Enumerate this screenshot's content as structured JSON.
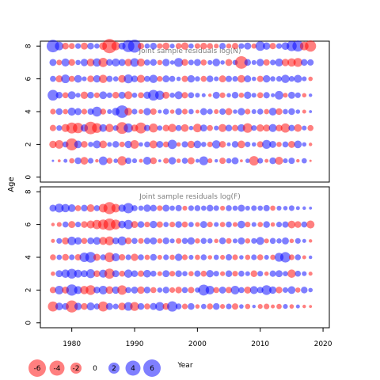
{
  "chart_data": [
    {
      "type": "scatter",
      "title": "Joint sample residuals log(N)",
      "xlabel": "",
      "ylabel": "Age",
      "xlim": [
        1975,
        2021
      ],
      "ylim": [
        -0.3,
        8.3
      ],
      "y_ticks": [
        0,
        2,
        4,
        6,
        8
      ],
      "x_ticks": [
        1980,
        1990,
        2000,
        2010,
        2020
      ],
      "show_x_tick_labels": false,
      "ages": [
        1,
        2,
        3,
        4,
        5,
        6,
        7,
        8
      ],
      "years": [
        1977,
        1978,
        1979,
        1980,
        1981,
        1982,
        1983,
        1984,
        1985,
        1986,
        1987,
        1988,
        1989,
        1990,
        1991,
        1992,
        1993,
        1994,
        1995,
        1996,
        1997,
        1998,
        1999,
        2000,
        2001,
        2002,
        2003,
        2004,
        2005,
        2006,
        2007,
        2008,
        2009,
        2010,
        2011,
        2012,
        2013,
        2014,
        2015,
        2016,
        2017,
        2018
      ],
      "residuals": [
        [
          0.2,
          -0.3,
          0.5,
          -0.8,
          1.2,
          -1.5,
          0.9,
          -0.4,
          1.8,
          -1.0,
          0.6,
          -2.0,
          1.1,
          0.7,
          -0.5,
          1.6,
          -1.2,
          0.3,
          -0.9,
          1.4,
          -0.6,
          1.0,
          -1.3,
          0.5,
          1.9,
          -0.7,
          0.4,
          -1.1,
          0.8,
          1.3,
          -0.3,
          0.6,
          -2.1,
          0.9,
          -0.5,
          1.2,
          -1.6,
          0.7,
          1.1,
          -0.4,
          0.8,
          -0.2
        ],
        [
          -1.4,
          -1.8,
          1.0,
          -3.0,
          1.5,
          -1.2,
          0.8,
          1.6,
          -1.5,
          0.7,
          1.2,
          -0.9,
          1.4,
          -1.8,
          0.6,
          1.0,
          -1.6,
          1.3,
          -1.0,
          2.0,
          -0.6,
          1.1,
          -1.4,
          1.5,
          0.8,
          -0.9,
          1.7,
          -1.2,
          0.5,
          1.2,
          -1.5,
          0.9,
          0.6,
          -1.1,
          1.9,
          1.3,
          -0.8,
          1.0,
          -1.3,
          1.5,
          0.6,
          -0.4
        ],
        [
          -1.1,
          0.9,
          -1.6,
          -2.6,
          -2.4,
          1.4,
          -3.2,
          -2.2,
          1.5,
          -1.7,
          0.9,
          -2.9,
          2.0,
          -1.3,
          -2.6,
          1.1,
          -1.9,
          0.8,
          -1.2,
          -1.7,
          1.0,
          -1.5,
          0.6,
          -1.8,
          1.3,
          -1.0,
          0.7,
          -1.6,
          1.2,
          -1.1,
          1.5,
          -2.1,
          0.9,
          -1.4,
          -1.3,
          1.6,
          -1.2,
          -2.0,
          1.1,
          -1.5,
          0.7,
          -1.0
        ],
        [
          -0.9,
          1.2,
          -0.8,
          1.6,
          1.3,
          -0.9,
          1.1,
          2.2,
          -1.0,
          0.7,
          1.5,
          3.2,
          -1.5,
          0.9,
          -0.7,
          1.4,
          -1.1,
          0.5,
          1.0,
          -0.6,
          1.2,
          -0.9,
          0.8,
          -0.5,
          1.3,
          0.9,
          -0.7,
          1.1,
          -1.3,
          0.6,
          1.4,
          -0.9,
          0.7,
          1.0,
          -0.8,
          1.5,
          -1.2,
          0.8,
          1.2,
          0.6,
          -0.5,
          0.3
        ],
        [
          2.5,
          1.2,
          -1.0,
          1.6,
          0.7,
          -1.4,
          1.2,
          -0.9,
          1.5,
          0.9,
          -1.2,
          1.3,
          -1.6,
          0.8,
          -1.0,
          1.4,
          2.5,
          2.0,
          -1.3,
          0.8,
          1.6,
          -1.1,
          1.0,
          0.7,
          0.5,
          -0.4,
          1.3,
          -0.9,
          0.6,
          1.2,
          -0.8,
          1.4,
          0.7,
          -1.0,
          1.1,
          0.5,
          1.8,
          -0.7,
          1.3,
          0.9,
          -0.6,
          0.4
        ],
        [
          1.0,
          -1.3,
          1.8,
          -1.0,
          1.5,
          0.7,
          -1.2,
          1.4,
          -1.7,
          1.1,
          0.8,
          -1.5,
          1.9,
          1.2,
          -1.6,
          1.0,
          1.7,
          -0.9,
          1.3,
          1.0,
          0.6,
          -1.1,
          1.4,
          0.8,
          -1.0,
          1.2,
          0.7,
          -1.3,
          1.1,
          0.9,
          -1.5,
          1.3,
          0.6,
          -1.1,
          1.4,
          0.8,
          0.9,
          1.7,
          0.9,
          1.6,
          0.7,
          -0.6
        ],
        [
          1.3,
          -0.9,
          1.6,
          -1.2,
          0.8,
          1.4,
          -1.5,
          1.7,
          -2.0,
          1.2,
          1.6,
          1.3,
          -1.4,
          1.8,
          -1.6,
          1.0,
          1.2,
          -0.8,
          1.4,
          0.6,
          1.9,
          -1.2,
          0.9,
          1.3,
          -1.0,
          0.7,
          1.5,
          0.6,
          -1.3,
          0.8,
          -3.2,
          1.2,
          0.7,
          1.4,
          -1.1,
          0.9,
          1.6,
          -1.4,
          -1.7,
          -1.9,
          1.2,
          1.1
        ],
        [
          3.2,
          1.8,
          -1.2,
          -1.0,
          0.9,
          -1.3,
          1.2,
          0.8,
          -1.5,
          -3.9,
          -1.8,
          1.3,
          3.0,
          3.4,
          -1.1,
          0.8,
          1.2,
          -0.9,
          -1.3,
          0.7,
          -1.0,
          -1.4,
          0.8,
          -0.9,
          -1.2,
          -1.0,
          -0.7,
          1.1,
          -0.8,
          -1.1,
          0.9,
          1.3,
          -0.8,
          2.1,
          1.4,
          -1.1,
          0.9,
          1.5,
          2.3,
          2.6,
          -1.8,
          -2.7
        ]
      ]
    },
    {
      "type": "scatter",
      "title": "Joint sample residuals log(F)",
      "xlabel": "Year",
      "ylabel": "",
      "xlim": [
        1975,
        2021
      ],
      "ylim": [
        -0.3,
        8.3
      ],
      "y_ticks": [
        0,
        2,
        4,
        6,
        8
      ],
      "x_ticks": [
        1980,
        1990,
        2000,
        2010,
        2020
      ],
      "show_x_tick_labels": true,
      "ages": [
        1,
        2,
        3,
        4,
        5,
        6,
        7
      ],
      "years": [
        1977,
        1978,
        1979,
        1980,
        1981,
        1982,
        1983,
        1984,
        1985,
        1986,
        1987,
        1988,
        1989,
        1990,
        1991,
        1992,
        1993,
        1994,
        1995,
        1996,
        1997,
        1998,
        1999,
        2000,
        2001,
        2002,
        2003,
        2004,
        2005,
        2006,
        2007,
        2008,
        2009,
        2010,
        2011,
        2012,
        2013,
        2014,
        2015,
        2016,
        2017,
        2018
      ],
      "residuals": [
        [
          -2.3,
          1.5,
          1.2,
          -3.0,
          1.4,
          -1.2,
          1.6,
          1.0,
          -2.3,
          1.3,
          0.9,
          -1.5,
          1.8,
          -1.9,
          1.2,
          -1.0,
          1.3,
          1.9,
          -1.2,
          2.4,
          1.0,
          -0.9,
          1.2,
          -0.6,
          0.8,
          -1.0,
          1.2,
          -0.7,
          0.9,
          -1.1,
          0.6,
          -0.8,
          0.4,
          -0.7,
          -0.9,
          -0.5,
          -0.8,
          0.7,
          -0.6,
          0.5,
          -0.4,
          -0.3
        ],
        [
          -1.1,
          1.8,
          -1.3,
          2.7,
          1.6,
          -1.7,
          -2.2,
          1.2,
          1.8,
          -1.5,
          1.4,
          -2.1,
          1.0,
          1.3,
          -1.4,
          1.2,
          -1.0,
          0.8,
          1.2,
          -0.9,
          -1.2,
          1.0,
          -1.1,
          0.8,
          2.6,
          1.8,
          -1.0,
          1.3,
          -1.1,
          1.8,
          1.0,
          -1.3,
          1.6,
          1.1,
          2.2,
          1.4,
          -1.2,
          0.9,
          1.5,
          -0.8,
          1.2,
          0.6
        ],
        [
          -0.6,
          1.3,
          1.7,
          2.2,
          1.6,
          1.3,
          1.9,
          -1.2,
          1.6,
          -2.3,
          1.3,
          -1.0,
          1.7,
          1.2,
          -1.1,
          1.5,
          1.0,
          -0.7,
          1.3,
          -0.9,
          1.2,
          0.8,
          -0.8,
          1.1,
          -1.0,
          1.4,
          0.9,
          -0.7,
          1.2,
          -0.9,
          1.0,
          0.7,
          -1.2,
          0.9,
          -0.6,
          1.1,
          1.3,
          0.8,
          -1.7,
          1.0,
          0.7,
          -0.5
        ],
        [
          -1.0,
          0.8,
          -1.2,
          0.9,
          -1.1,
          2.1,
          2.5,
          -1.3,
          1.0,
          -2.2,
          1.6,
          -1.1,
          0.9,
          -1.4,
          1.0,
          -0.8,
          1.2,
          -0.7,
          0.9,
          -0.8,
          1.4,
          -0.9,
          0.7,
          -0.8,
          1.0,
          -0.6,
          0.8,
          -0.7,
          1.1,
          -0.9,
          0.6,
          -0.8,
          0.9,
          -1.0,
          0.7,
          -0.8,
          1.9,
          2.4,
          -0.9,
          1.0,
          -0.5,
          0.4
        ],
        [
          -0.5,
          0.9,
          -1.3,
          1.8,
          1.4,
          -1.0,
          1.2,
          1.5,
          -1.6,
          -1.9,
          1.2,
          1.9,
          -1.2,
          1.0,
          -0.9,
          1.1,
          1.3,
          -0.8,
          1.2,
          0.7,
          -0.9,
          1.0,
          1.4,
          -0.8,
          1.0,
          0.8,
          -0.6,
          1.2,
          -0.9,
          0.7,
          1.3,
          -0.8,
          0.9,
          1.6,
          -0.7,
          1.0,
          0.8,
          1.3,
          -0.6,
          0.9,
          0.5,
          -0.4
        ],
        [
          -0.4,
          -0.7,
          1.0,
          -1.3,
          0.9,
          -1.2,
          -1.6,
          -2.0,
          -2.3,
          -3.0,
          -2.2,
          1.5,
          2.0,
          -1.3,
          1.2,
          -0.9,
          1.4,
          -1.1,
          0.8,
          -0.9,
          1.2,
          -1.0,
          0.8,
          -0.7,
          1.3,
          -0.9,
          0.7,
          -0.8,
          1.0,
          -0.7,
          1.5,
          -0.9,
          0.7,
          -0.8,
          1.2,
          -0.6,
          0.9,
          1.1,
          -1.5,
          -1.2,
          1.0,
          -1.6
        ],
        [
          1.3,
          1.9,
          1.7,
          1.5,
          -1.0,
          1.2,
          -1.5,
          1.0,
          -1.8,
          -3.0,
          -1.8,
          1.4,
          2.4,
          1.0,
          0.8,
          1.4,
          1.2,
          -0.9,
          1.3,
          0.8,
          1.1,
          -0.7,
          0.9,
          1.0,
          0.8,
          1.2,
          0.9,
          -0.7,
          1.0,
          0.8,
          1.3,
          0.7,
          0.9,
          0.8,
          1.1,
          -0.8,
          0.7,
          0.6,
          0.9,
          0.5,
          0.4,
          0.3
        ]
      ]
    }
  ],
  "legend": {
    "items": [
      {
        "value": -6,
        "label": "-6"
      },
      {
        "value": -4,
        "label": "-4"
      },
      {
        "value": -2,
        "label": "-2"
      },
      {
        "value": 0,
        "label": "0"
      },
      {
        "value": 2,
        "label": "2"
      },
      {
        "value": 4,
        "label": "4"
      },
      {
        "value": 6,
        "label": "6"
      }
    ],
    "x_label": "Year"
  },
  "colors": {
    "negative": "#ff0000",
    "positive": "#0000ff",
    "alpha": 0.5,
    "frame": "#000000",
    "title": "#7f7f7f"
  }
}
